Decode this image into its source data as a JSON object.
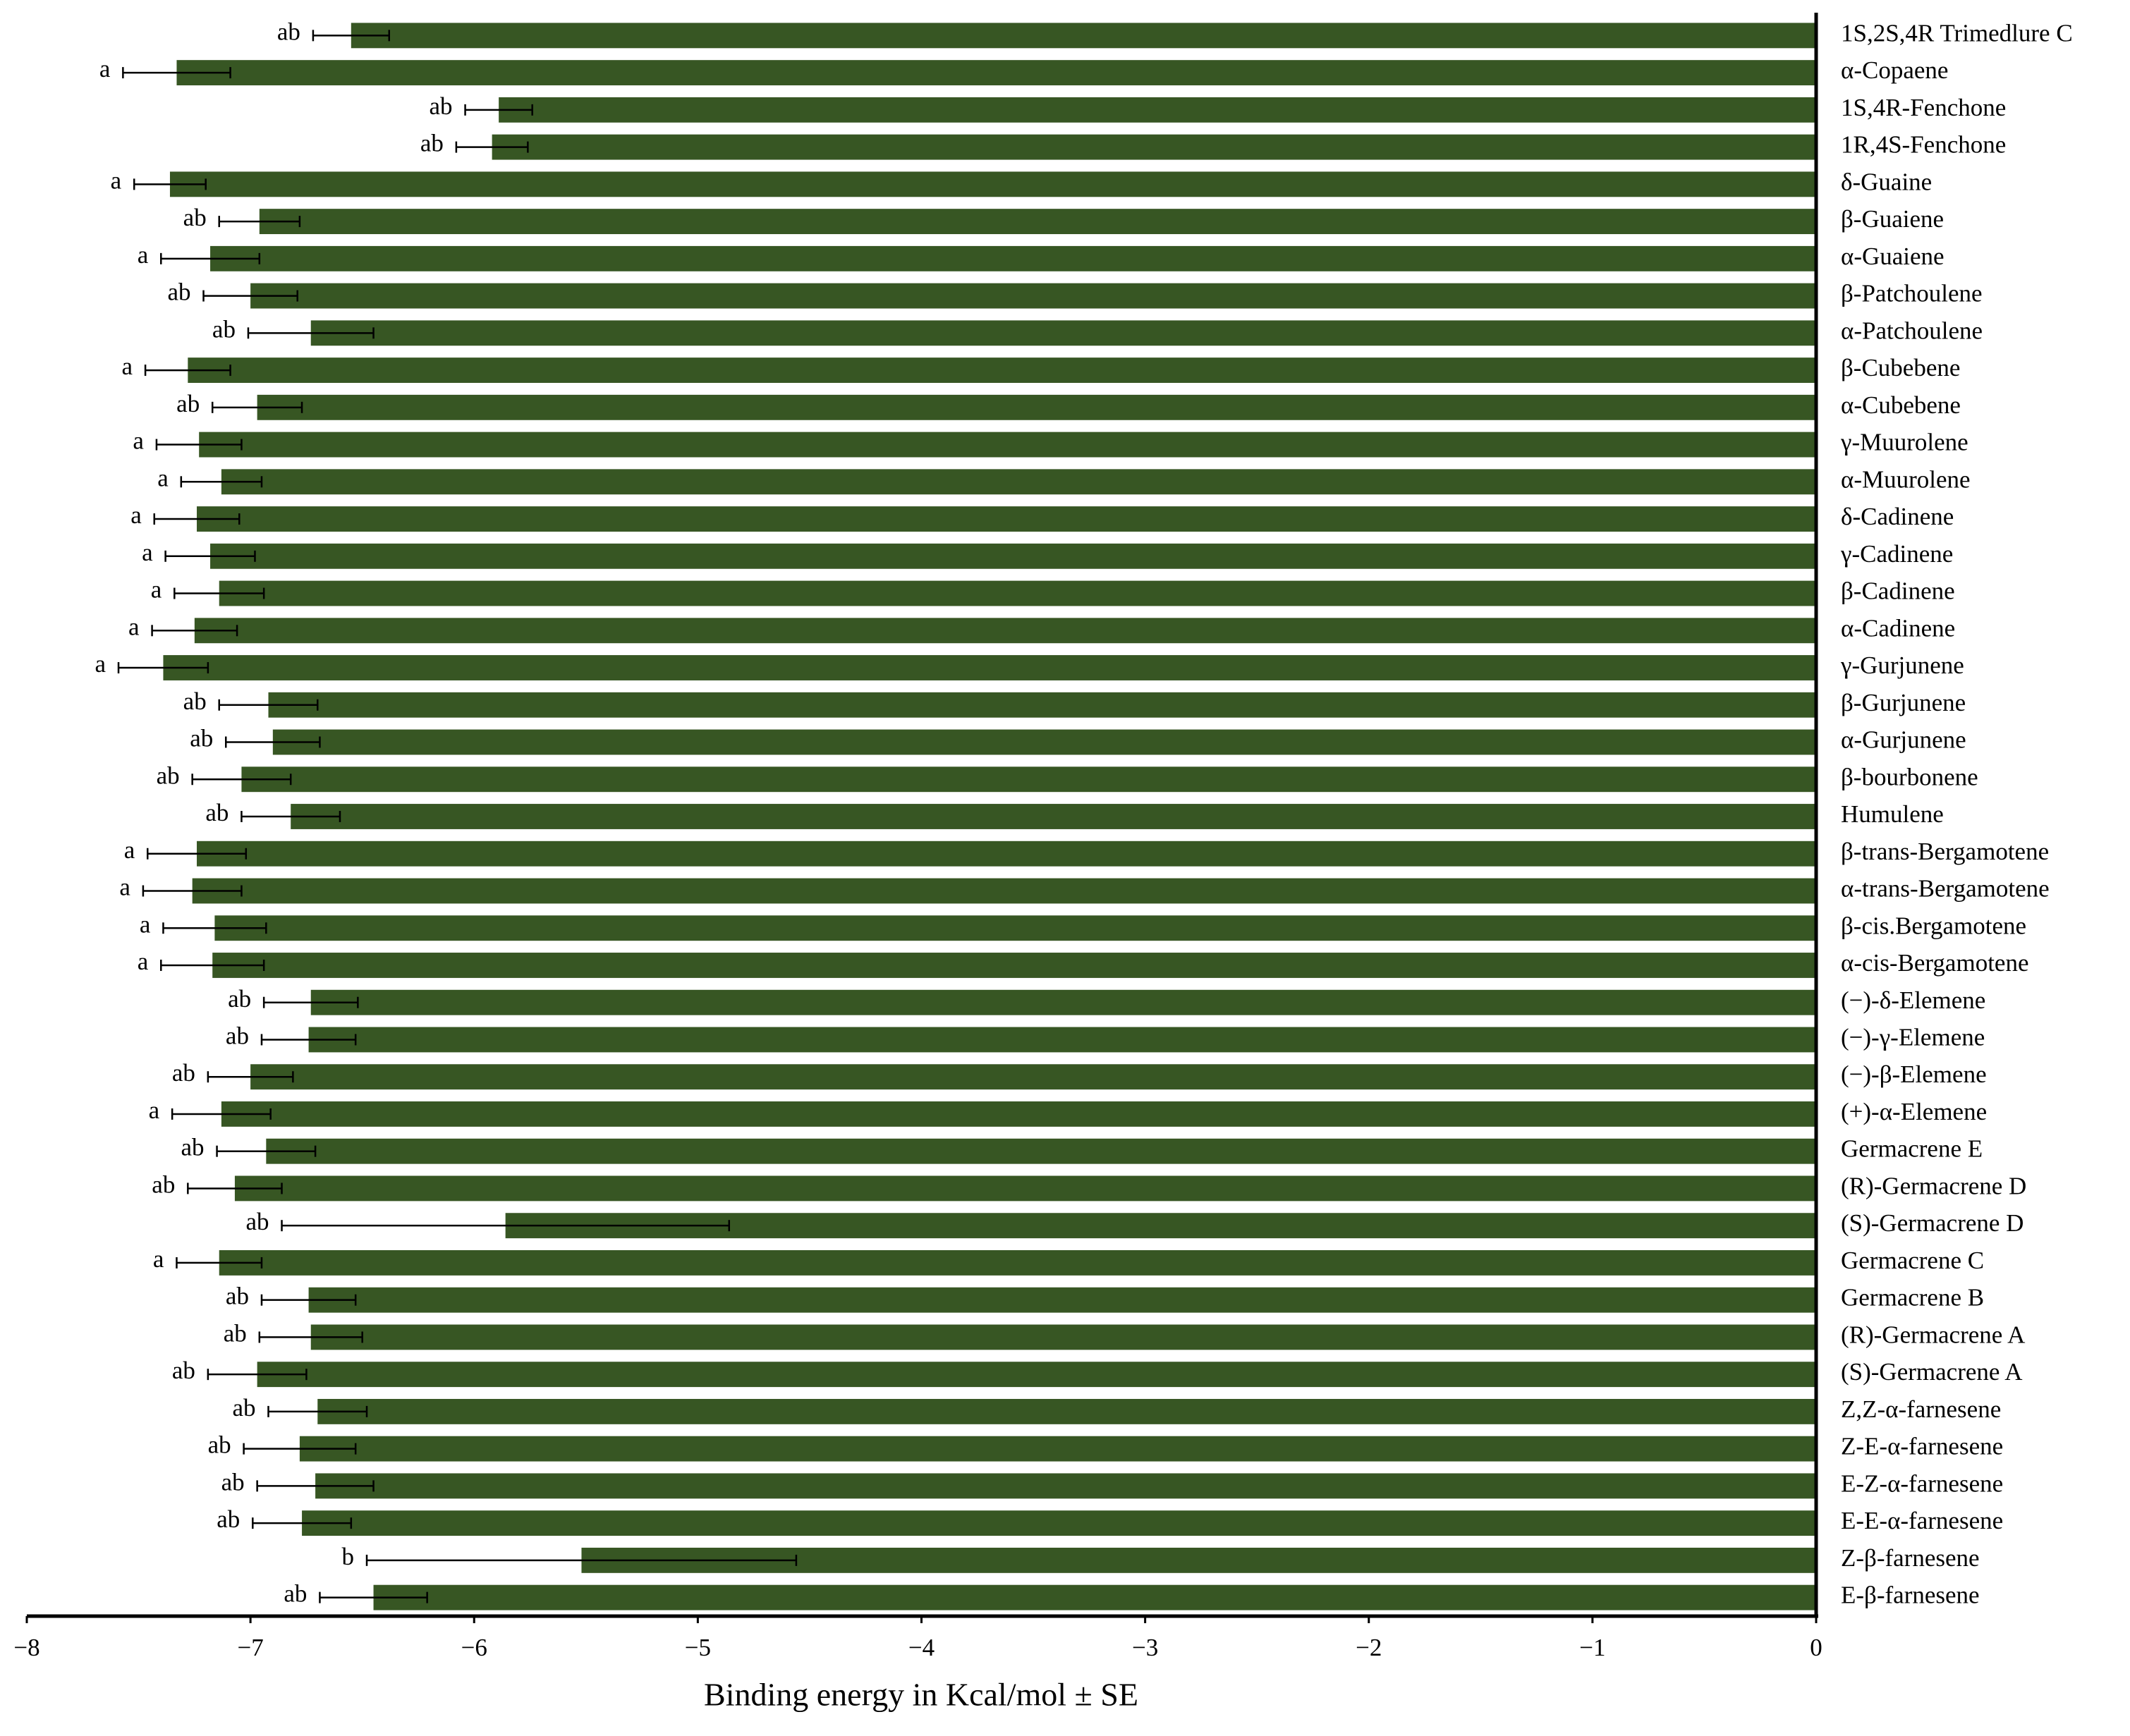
{
  "chart_data": {
    "type": "barh",
    "xlabel": "Binding energy in Kcal/mol ± SE",
    "categories": [
      "1S,2S,4R Trimedlure C",
      "α-Copaene",
      "1S,4R-Fenchone",
      "1R,4S-Fenchone",
      "δ-Guaine",
      "β-Guaiene",
      "α-Guaiene",
      "β-Patchoulene",
      "α-Patchoulene",
      "β-Cubebene",
      "α-Cubebene",
      "γ-Muurolene",
      "α-Muurolene",
      "δ-Cadinene",
      "γ-Cadinene",
      "β-Cadinene",
      "α-Cadinene",
      "γ-Gurjunene",
      "β-Gurjunene",
      "α-Gurjunene",
      "β-bourbonene",
      "Humulene",
      "β-trans-Bergamotene",
      "α-trans-Bergamotene",
      "β-cis.Bergamotene",
      "α-cis-Bergamotene",
      "(−)-δ-Elemene",
      "(−)-γ-Elemene",
      "(−)-β-Elemene",
      "(+)-α-Elemene",
      "Germacrene E",
      "(R)-Germacrene D",
      "(S)-Germacrene D",
      "Germacrene C",
      "Germacrene B",
      "(R)-Germacrene A",
      "(S)-Germacrene A",
      "Z,Z-α-farnesene",
      "Z-E-α-farnesene",
      "E-Z-α-farnesene",
      "E-E-α-farnesene",
      "Z-β-farnesene",
      "E-β-farnesene"
    ],
    "values": [
      -6.55,
      -7.33,
      -5.89,
      -5.92,
      -7.36,
      -6.96,
      -7.18,
      -7.0,
      -6.73,
      -7.28,
      -6.97,
      -7.23,
      -7.13,
      -7.24,
      -7.18,
      -7.14,
      -7.25,
      -7.39,
      -6.92,
      -6.9,
      -7.04,
      -6.82,
      -7.24,
      -7.26,
      -7.16,
      -7.17,
      -6.73,
      -6.74,
      -7.0,
      -7.13,
      -6.93,
      -7.07,
      -5.86,
      -7.14,
      -6.74,
      -6.73,
      -6.97,
      -6.7,
      -6.78,
      -6.71,
      -6.77,
      -5.52,
      -6.45
    ],
    "errors": [
      0.17,
      0.24,
      0.15,
      0.16,
      0.16,
      0.18,
      0.22,
      0.21,
      0.28,
      0.19,
      0.2,
      0.19,
      0.18,
      0.19,
      0.2,
      0.2,
      0.19,
      0.2,
      0.22,
      0.21,
      0.22,
      0.22,
      0.22,
      0.22,
      0.23,
      0.23,
      0.21,
      0.21,
      0.19,
      0.22,
      0.22,
      0.21,
      1.0,
      0.19,
      0.21,
      0.23,
      0.22,
      0.22,
      0.25,
      0.26,
      0.22,
      0.96,
      0.24
    ],
    "significance_letters": [
      "ab",
      "a",
      "ab",
      "ab",
      "a",
      "ab",
      "a",
      "ab",
      "ab",
      "a",
      "ab",
      "a",
      "a",
      "a",
      "a",
      "a",
      "a",
      "a",
      "ab",
      "ab",
      "ab",
      "ab",
      "a",
      "a",
      "a",
      "a",
      "ab",
      "ab",
      "ab",
      "a",
      "ab",
      "ab",
      "ab",
      "a",
      "ab",
      "ab",
      "ab",
      "ab",
      "ab",
      "ab",
      "ab",
      "b",
      "ab"
    ],
    "color": "#375623",
    "xlim": [
      -8,
      0
    ],
    "xticks": [
      {
        "value": -8,
        "label": "−8"
      },
      {
        "value": -7,
        "label": "−7"
      },
      {
        "value": -6,
        "label": "−6"
      },
      {
        "value": -5,
        "label": "−5"
      },
      {
        "value": -4,
        "label": "−4"
      },
      {
        "value": -3,
        "label": "−3"
      },
      {
        "value": -2,
        "label": "−2"
      },
      {
        "value": -1,
        "label": "−1"
      },
      0
    ]
  }
}
